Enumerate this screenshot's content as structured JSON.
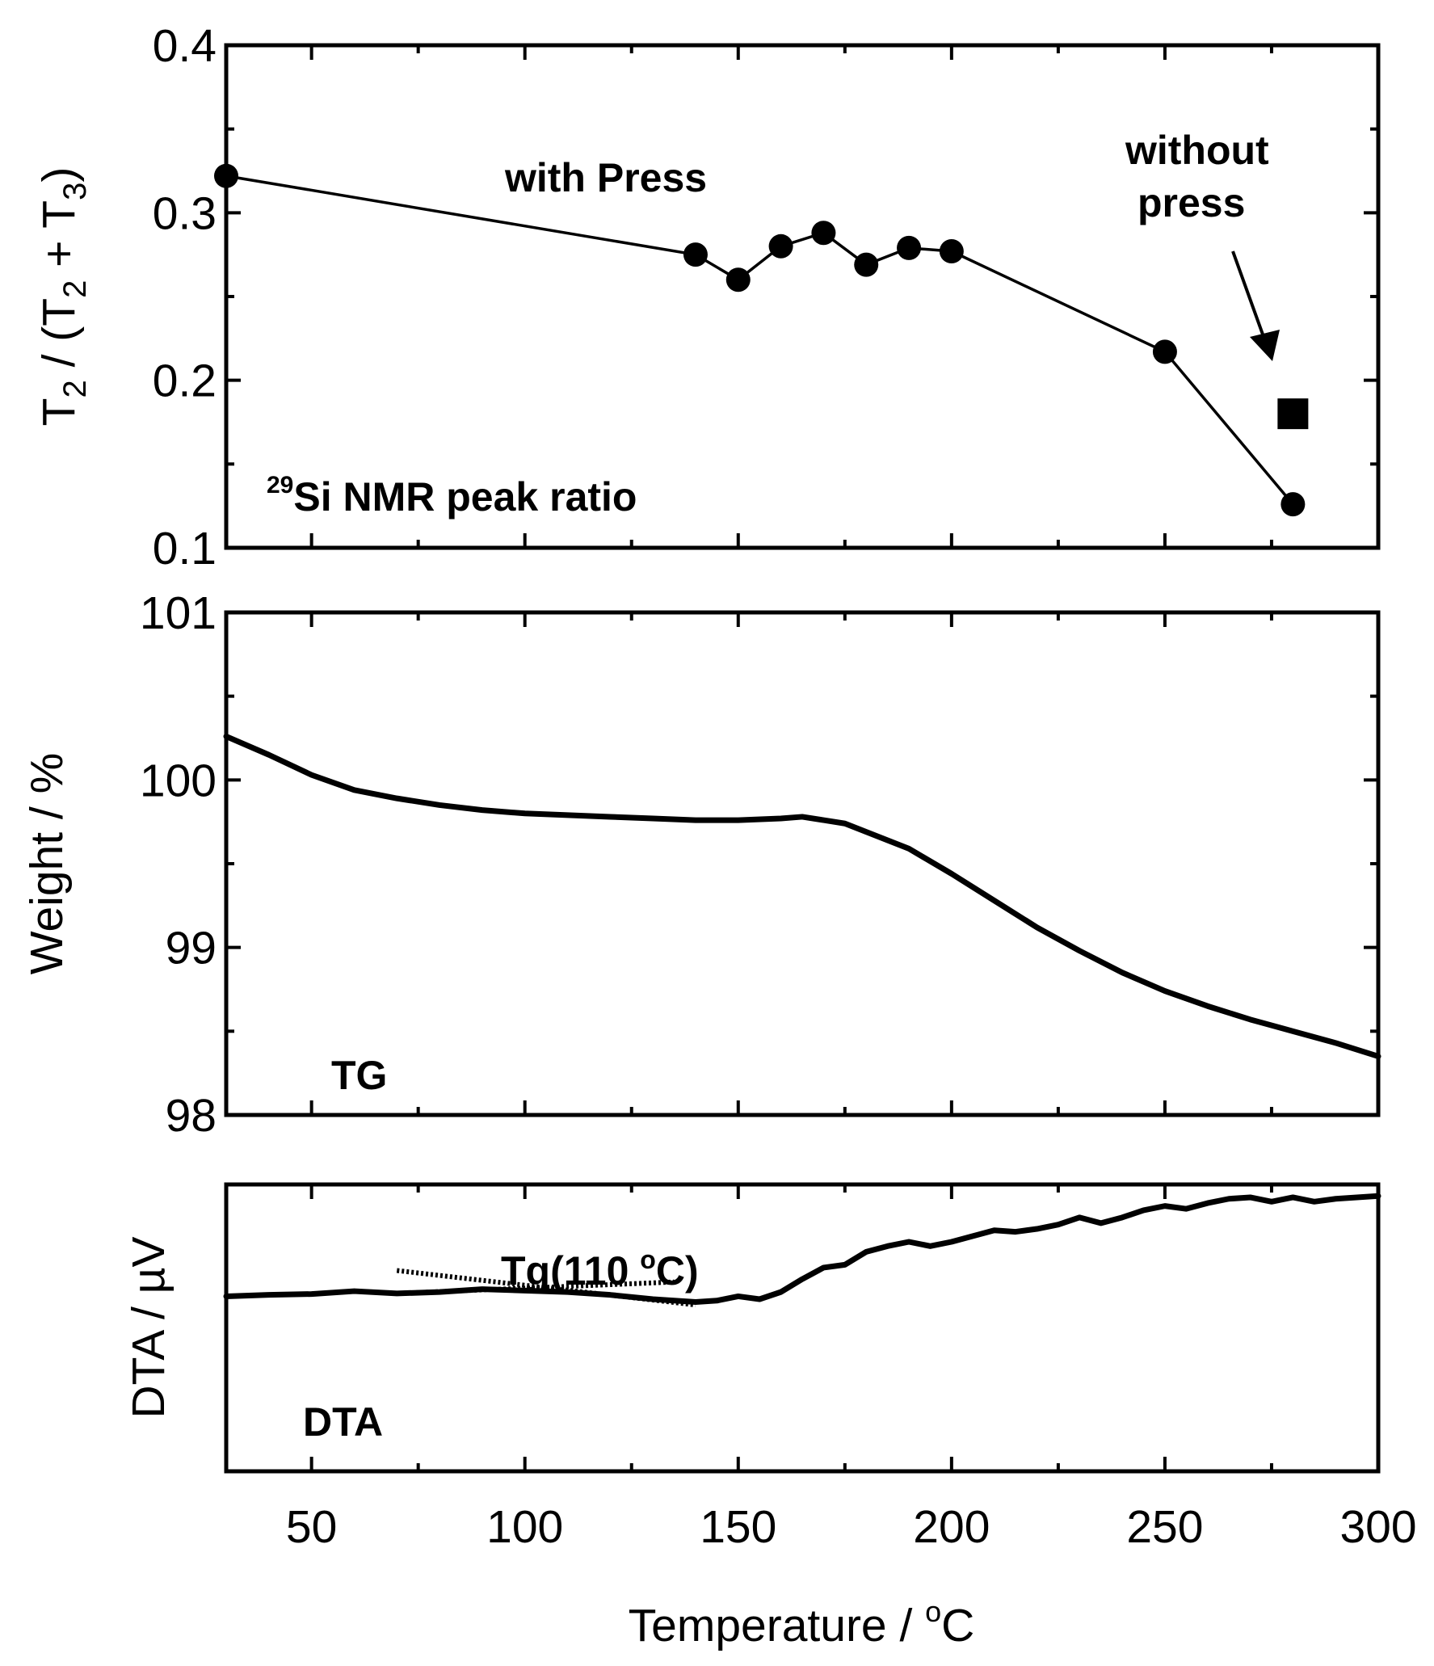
{
  "chart_data": [
    {
      "type": "line",
      "panel": "nmr",
      "ylabel": "T2 / (T2 + T3)",
      "ylabel_parts": {
        "t1": "T",
        "s1": "2",
        "mid": " / (T",
        "s2": "2",
        "plus": " + T",
        "s3": "3",
        "close": ")"
      },
      "xlim": [
        30,
        300
      ],
      "ylim": [
        0.1,
        0.4
      ],
      "yticks": [
        0.1,
        0.2,
        0.3,
        0.4
      ],
      "ytick_labels": [
        "0.1",
        "0.2",
        "0.3",
        "0.4"
      ],
      "grid": false,
      "series": [
        {
          "name": "with Press",
          "marker": "circle",
          "x": [
            30,
            140,
            150,
            160,
            170,
            180,
            190,
            200,
            250,
            280
          ],
          "y": [
            0.322,
            0.275,
            0.26,
            0.28,
            0.288,
            0.269,
            0.279,
            0.277,
            0.217,
            0.126
          ]
        },
        {
          "name": "without press",
          "marker": "square",
          "x": [
            280
          ],
          "y": [
            0.18
          ]
        }
      ],
      "annotations": {
        "with_press": "with Press",
        "without_line1": "without",
        "without_line2": "press",
        "nmr_sup": "29",
        "nmr_text": "Si NMR peak ratio"
      }
    },
    {
      "type": "line",
      "panel": "tg",
      "ylabel": "Weight / %",
      "xlim": [
        30,
        300
      ],
      "ylim": [
        98,
        101
      ],
      "yticks": [
        98,
        99,
        100,
        101
      ],
      "ytick_labels": [
        "98",
        "99",
        "100",
        "101"
      ],
      "grid": false,
      "series": [
        {
          "name": "TG",
          "x": [
            30,
            40,
            50,
            60,
            70,
            80,
            90,
            100,
            110,
            120,
            130,
            140,
            150,
            160,
            165,
            170,
            175,
            180,
            190,
            200,
            210,
            220,
            230,
            240,
            250,
            260,
            270,
            280,
            290,
            300
          ],
          "y": [
            100.26,
            100.15,
            100.03,
            99.94,
            99.89,
            99.85,
            99.82,
            99.8,
            99.79,
            99.78,
            99.77,
            99.76,
            99.76,
            99.77,
            99.78,
            99.76,
            99.74,
            99.69,
            99.59,
            99.44,
            99.28,
            99.12,
            98.98,
            98.85,
            98.74,
            98.65,
            98.57,
            98.5,
            98.43,
            98.35
          ]
        }
      ],
      "annotations": {
        "label": "TG"
      }
    },
    {
      "type": "line",
      "panel": "dta",
      "ylabel": "DTA / µV",
      "xlim": [
        30,
        300
      ],
      "ylim": [
        0,
        100
      ],
      "yticks": [],
      "grid": false,
      "series": [
        {
          "name": "DTA",
          "x": [
            30,
            40,
            50,
            60,
            70,
            80,
            90,
            100,
            110,
            120,
            130,
            140,
            145,
            150,
            155,
            160,
            165,
            170,
            175,
            180,
            185,
            190,
            195,
            200,
            205,
            210,
            215,
            220,
            225,
            230,
            235,
            240,
            245,
            250,
            255,
            260,
            265,
            270,
            275,
            280,
            285,
            290,
            295,
            300
          ],
          "y": [
            61,
            61.5,
            61.8,
            62.8,
            62,
            62.5,
            63.5,
            63,
            62.5,
            61.5,
            60,
            59,
            59.5,
            61,
            60,
            62.5,
            67,
            71,
            72,
            76.5,
            78.5,
            80,
            78.5,
            80,
            82,
            84,
            83.5,
            84.5,
            86,
            88.5,
            86.5,
            88.5,
            91,
            92.5,
            91.5,
            93.5,
            95,
            95.5,
            94,
            95.5,
            94,
            95,
            95.5,
            96
          ]
        }
      ],
      "tangents": [
        {
          "x": [
            70,
            140
          ],
          "y": [
            70,
            58
          ]
        },
        {
          "x": [
            70,
            135
          ],
          "y": [
            62,
            66
          ]
        }
      ],
      "annotations": {
        "tg_prefix": "Tg(110 ",
        "tg_deg": "o",
        "tg_suffix": "C)",
        "label": "DTA"
      }
    }
  ],
  "xaxis": {
    "ticks": [
      50,
      100,
      150,
      200,
      250,
      300
    ],
    "tick_labels": [
      "50",
      "100",
      "150",
      "200",
      "250",
      "300"
    ],
    "title_prefix": "Temperature / ",
    "title_deg": "o",
    "title_unit": "C"
  }
}
